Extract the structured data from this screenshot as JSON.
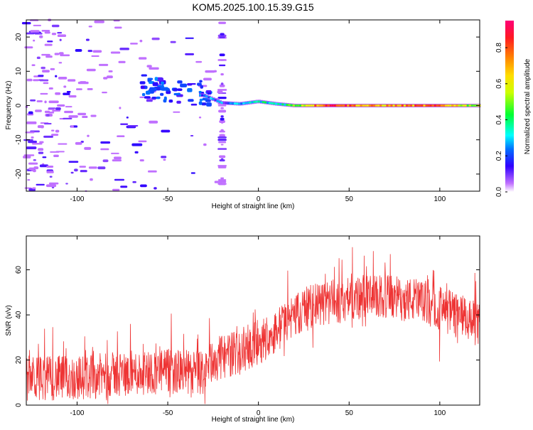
{
  "figure": {
    "title": "KOM5.2025.100.15.39.G15"
  },
  "chart_data": [
    {
      "type": "heatmap",
      "title": "KOM5.2025.100.15.39.G15",
      "xlabel": "Height of straight line (km)",
      "ylabel": "Frequency (Hz)",
      "xlim": [
        -128,
        122
      ],
      "ylim": [
        -25,
        25
      ],
      "xticks": [
        -100,
        -50,
        0,
        50,
        100
      ],
      "yticks": [
        -20,
        -10,
        0,
        10,
        20
      ],
      "ridge": {
        "description_points_x": [
          -30,
          -20,
          -10,
          0,
          10,
          20,
          40,
          60,
          80,
          100,
          122
        ],
        "frequency_hz": [
          3,
          0.8,
          0.5,
          1.2,
          0.5,
          0,
          0,
          0,
          0,
          0,
          0
        ],
        "amplitude": [
          0.25,
          0.2,
          0.25,
          0.35,
          0.35,
          0.5,
          0.95,
          0.7,
          0.75,
          0.8,
          0.5
        ]
      },
      "colorbar": {
        "label": "Normalized spectral amplitude",
        "range": [
          0.0,
          0.95
        ],
        "ticks": [
          0.0,
          0.2,
          0.4,
          0.6,
          0.8
        ],
        "tick_labels": [
          "0.0",
          "0.2",
          "0.4",
          "0.6",
          "0.8"
        ]
      },
      "grid": false,
      "colors": {
        "low": "#7b00ff",
        "mid": "#00ff66",
        "high": "#ff0033"
      }
    },
    {
      "type": "line",
      "xlabel": "Height of straight line (km)",
      "ylabel": "SNR (v/v)",
      "xlim": [
        -128,
        122
      ],
      "ylim": [
        0,
        75
      ],
      "xticks": [
        -100,
        -50,
        0,
        50,
        100
      ],
      "yticks": [
        0,
        20,
        40,
        60
      ],
      "series": [
        {
          "color": "#ee3333",
          "trend_x": [
            -128,
            -100,
            -75,
            -50,
            -30,
            -25,
            -10,
            0,
            10,
            20,
            30,
            50,
            70,
            90,
            110,
            122
          ],
          "trend_y": [
            12,
            12,
            14,
            15,
            14,
            20,
            24,
            28,
            33,
            40,
            44,
            47,
            48,
            46,
            40,
            35
          ],
          "noise_amplitude": 10
        }
      ],
      "grid": false
    }
  ]
}
